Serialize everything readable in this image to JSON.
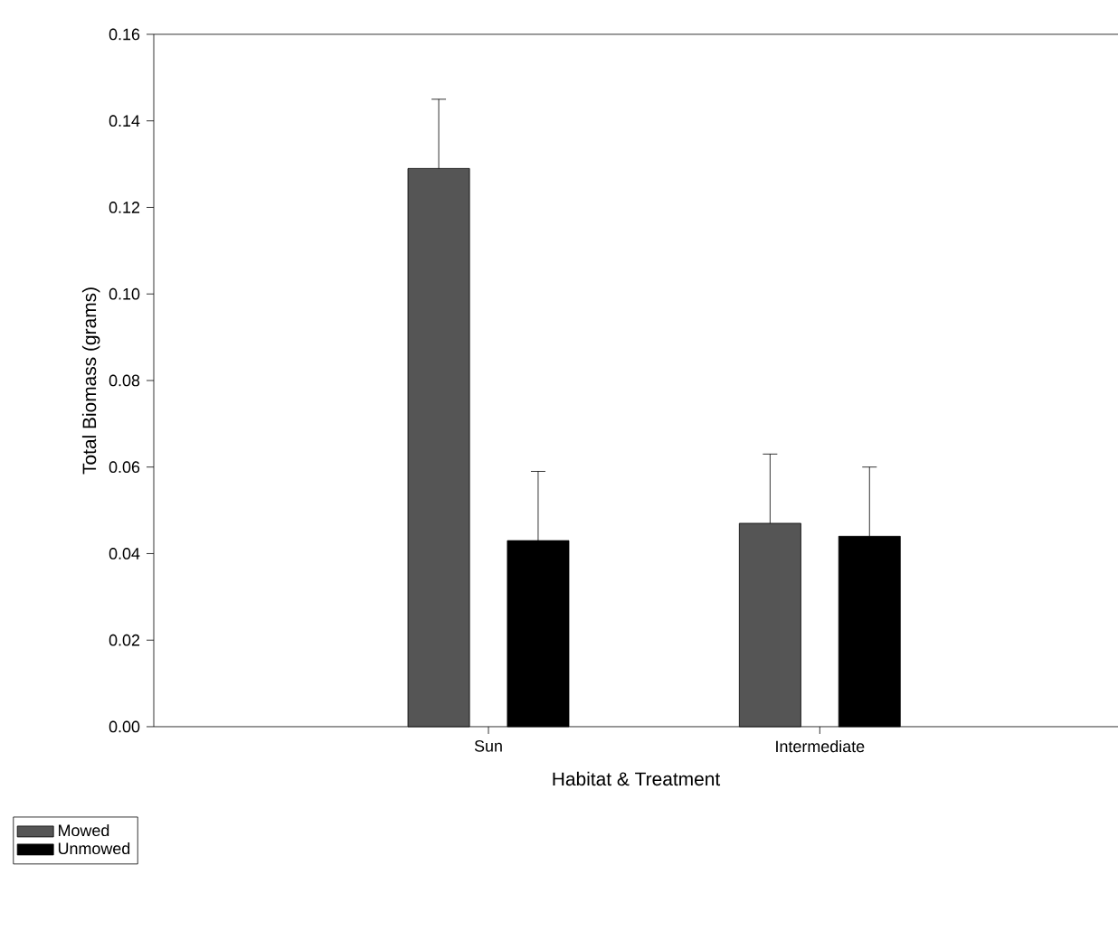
{
  "chart_data": {
    "type": "bar",
    "xlabel": "Habitat & Treatment",
    "ylabel": "Total Biomass (grams)",
    "categories": [
      "Sun",
      "Intermediate"
    ],
    "series": [
      {
        "name": "Mowed",
        "color": "#555555",
        "values": [
          0.129,
          0.047
        ],
        "errors": [
          [
            0.129,
            0.145
          ],
          [
            0.047,
            0.063
          ]
        ]
      },
      {
        "name": "Unmowed",
        "color": "#000000",
        "values": [
          0.043,
          0.044
        ],
        "errors": [
          [
            0.043,
            0.059
          ],
          [
            0.044,
            0.06
          ]
        ]
      }
    ],
    "ylim": [
      0,
      0.16
    ],
    "yticks": [
      {
        "value": 0,
        "label": "0.00"
      },
      0.02,
      0.04,
      0.06,
      0.08,
      {
        "value": 0.1,
        "label": "0.10"
      },
      0.12,
      0.14,
      0.16
    ],
    "grid": false,
    "legend": "bottom left"
  }
}
